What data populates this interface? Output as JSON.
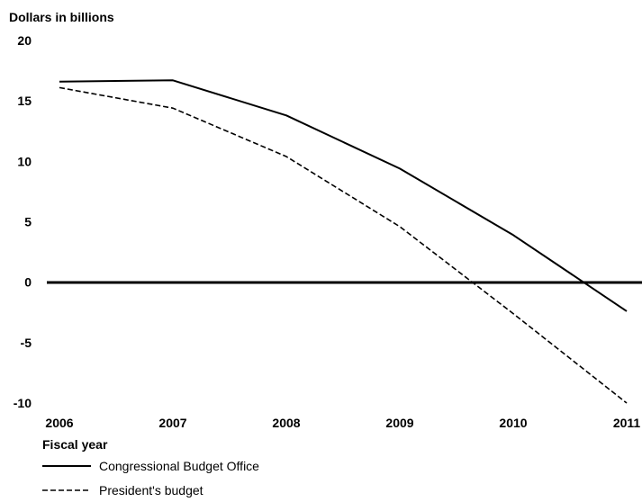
{
  "chart_data": {
    "type": "line",
    "title": "",
    "ylabel": "Dollars in billions",
    "xlabel": "Fiscal year",
    "x": [
      "2006",
      "2007",
      "2008",
      "2009",
      "2010",
      "2011"
    ],
    "ylim": [
      -10,
      20
    ],
    "yticks": [
      "20",
      "15",
      "10",
      "5",
      "0",
      "-5",
      "-10"
    ],
    "ytick_values": [
      20,
      15,
      10,
      5,
      0,
      -5,
      -10
    ],
    "grid": false,
    "legend_position": "bottom-left",
    "series": [
      {
        "name": "Congressional Budget Office",
        "style": "solid",
        "color": "#000000",
        "values": [
          16.6,
          16.7,
          13.8,
          9.4,
          3.9,
          -2.4
        ]
      },
      {
        "name": "President's budget",
        "style": "dashed",
        "color": "#000000",
        "values": [
          16.1,
          14.4,
          10.4,
          4.6,
          -2.6,
          -10.0
        ]
      }
    ]
  }
}
